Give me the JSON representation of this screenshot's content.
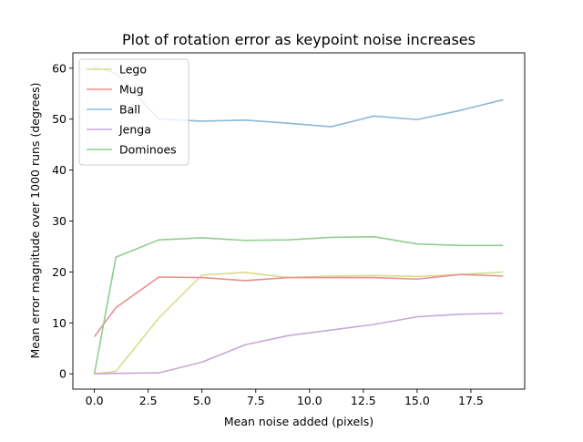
{
  "chart_data": {
    "type": "line",
    "title": "Plot of rotation error as keypoint noise increases",
    "xlabel": "Mean noise added (pixels)",
    "ylabel": "Mean error magnitude over 1000 runs (degrees)",
    "xlim": [
      -1,
      20
    ],
    "ylim": [
      -3,
      63
    ],
    "xticks": [
      "0.0",
      "2.5",
      "5.0",
      "7.5",
      "10.0",
      "12.5",
      "15.0",
      "17.5"
    ],
    "xtick_values": [
      0,
      2.5,
      5,
      7.5,
      10,
      12.5,
      15,
      17.5
    ],
    "yticks": [
      "0",
      "10",
      "20",
      "30",
      "40",
      "50",
      "60"
    ],
    "ytick_values": [
      0,
      10,
      20,
      30,
      40,
      50,
      60
    ],
    "grid": false,
    "legend_position": "upper-left",
    "x": [
      0,
      1,
      3,
      5,
      7,
      9,
      11,
      13,
      15,
      17,
      19
    ],
    "series": [
      {
        "name": "Lego",
        "color": "#dbdb8d",
        "values": [
          0,
          0.5,
          11,
          19.4,
          19.9,
          18.9,
          19.2,
          19.3,
          19.1,
          19.5,
          20
        ]
      },
      {
        "name": "Mug",
        "color": "#e8908f",
        "values": [
          7.3,
          13,
          19,
          18.9,
          18.3,
          18.9,
          18.9,
          18.9,
          18.6,
          19.5,
          19.2
        ]
      },
      {
        "name": "Ball",
        "color": "#8ab8d8",
        "values": [
          60.2,
          59,
          50,
          49.6,
          49.8,
          49.2,
          48.5,
          50.6,
          49.9,
          51.7,
          53.8
        ]
      },
      {
        "name": "Jenga",
        "color": "#c8a8d8",
        "values": [
          0,
          0.1,
          0.2,
          2.3,
          5.7,
          7.5,
          8.6,
          9.7,
          11.2,
          11.7,
          11.9
        ]
      },
      {
        "name": "Dominoes",
        "color": "#8fcf8f",
        "values": [
          0,
          22.9,
          26.3,
          26.7,
          26.2,
          26.3,
          26.8,
          26.9,
          25.5,
          25.2,
          25.2
        ]
      }
    ]
  }
}
